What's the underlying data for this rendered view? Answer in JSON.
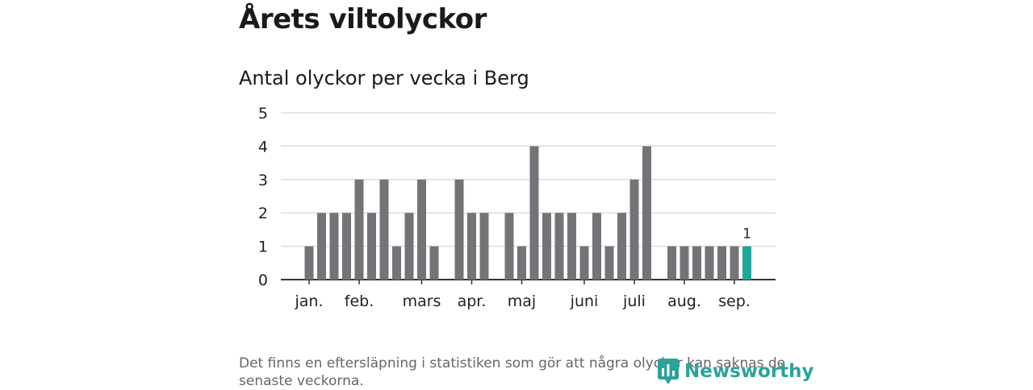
{
  "title": "Årets viltolyckor",
  "subtitle": "Antal olyckor per vecka i Berg",
  "footnote": "Det finns en eftersläpning i statistiken som gör att några olyckor kan saknas de senaste veckorna.",
  "brand": "Newsworthy",
  "colors": {
    "bar": "#747378",
    "highlight": "#21a69a",
    "grid": "#dddddd",
    "axis": "#333333"
  },
  "chart_data": {
    "type": "bar",
    "ylim": [
      0,
      5
    ],
    "yticks": [
      0,
      1,
      2,
      3,
      4,
      5
    ],
    "x_tick_labels": [
      "jan.",
      "feb.",
      "mars",
      "apr.",
      "maj",
      "juni",
      "juli",
      "aug.",
      "sep."
    ],
    "values": [
      1,
      2,
      2,
      2,
      3,
      2,
      3,
      1,
      2,
      3,
      1,
      0,
      3,
      2,
      2,
      0,
      2,
      1,
      4,
      2,
      2,
      2,
      1,
      2,
      1,
      2,
      3,
      4,
      0,
      1,
      1,
      1,
      1,
      1,
      1,
      1
    ],
    "highlight_last": true,
    "data_labels": [
      {
        "index": 35,
        "text": "1"
      }
    ],
    "grid": true
  }
}
